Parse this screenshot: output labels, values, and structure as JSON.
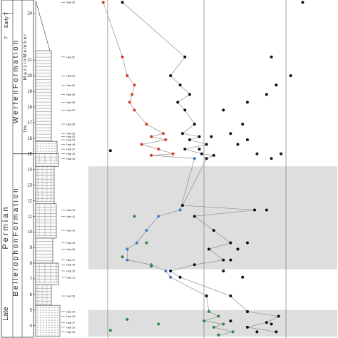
{
  "stratigraphy": {
    "age_labels": [
      "Early T",
      "?",
      "Late",
      "P e r m i a n"
    ],
    "formation_labels": [
      "W e r f e n   F o r m a t i o n",
      "B e l l e r o p h o n   F o r m a t i o n"
    ],
    "member_label": "M a z z i n   M e m b e r",
    "tesero_label": "T.Ho."
  },
  "chart_data": {
    "type": "scatter",
    "title": "",
    "ylabel": "",
    "y_ticks": [
      "4",
      "5",
      "6",
      "7",
      "8",
      "9",
      "10",
      "11",
      "12",
      "13",
      "14",
      "15",
      "16",
      "17",
      "18",
      "19",
      "20",
      "21",
      "24"
    ],
    "ylim": [
      3.3,
      24.8
    ],
    "shaded_intervals": [
      [
        3.3,
        5.0
      ],
      [
        7.6,
        14.2
      ]
    ],
    "samples": [
      {
        "label": "Hasi 63",
        "y": 24.7
      },
      {
        "label": "Hasi 62",
        "y": 21.2
      },
      {
        "label": "Hasi 61",
        "y": 20.0
      },
      {
        "label": "Hasi 60",
        "y": 19.4
      },
      {
        "label": "Hasi 59",
        "y": 18.8
      },
      {
        "label": "Hasi 58",
        "y": 18.3
      },
      {
        "label": "Hasi 57",
        "y": 17.8
      },
      {
        "label": "Hasi 56",
        "y": 16.9
      },
      {
        "label": "Hasi 55",
        "y": 16.3
      },
      {
        "label": "Hasi 53",
        "y": 16.1
      },
      {
        "label": "Hasi 51",
        "y": 15.9
      },
      {
        "label": "Hasi 49",
        "y": 15.6
      },
      {
        "label": "Hasi 47",
        "y": 15.3
      },
      {
        "label": "Hasi 45",
        "y": 15.0
      },
      {
        "label": "Hasi 44",
        "y": 14.7
      },
      {
        "label": "Hasi 43",
        "y": 11.4
      },
      {
        "label": "Hasi 42",
        "y": 11.0
      },
      {
        "label": "Hasi 41",
        "y": 10.1
      },
      {
        "label": "Hasi 39",
        "y": 9.3
      },
      {
        "label": "Hasi 38",
        "y": 8.9
      },
      {
        "label": "Hasi 37",
        "y": 8.2
      },
      {
        "label": "Hasi 34",
        "y": 7.9
      },
      {
        "label": "Hasi 32",
        "y": 7.5
      },
      {
        "label": "Hasi 31",
        "y": 7.1
      },
      {
        "label": "Hasi 30",
        "y": 5.9
      },
      {
        "label": "Hasi 29",
        "y": 4.9
      },
      {
        "label": "Hasi 28",
        "y": 4.6
      },
      {
        "label": "Hasi 27",
        "y": 4.2
      },
      {
        "label": "Hasi 26",
        "y": 3.9
      },
      {
        "label": "Hasi 25",
        "y": 3.6
      }
    ],
    "series": [
      {
        "color": "#d43a2f",
        "connected": true,
        "x_range": [
          0,
          1
        ],
        "points": [
          {
            "x": 0.02,
            "y": 24.7
          },
          {
            "x": 0.1,
            "y": 21.2
          },
          {
            "x": 0.12,
            "y": 20.0
          },
          {
            "x": 0.15,
            "y": 19.4
          },
          {
            "x": 0.14,
            "y": 18.8
          },
          {
            "x": 0.13,
            "y": 18.3
          },
          {
            "x": 0.15,
            "y": 17.8
          },
          {
            "x": 0.2,
            "y": 16.9
          },
          {
            "x": 0.27,
            "y": 16.3
          },
          {
            "x": 0.22,
            "y": 16.1
          },
          {
            "x": 0.28,
            "y": 15.9
          },
          {
            "x": 0.18,
            "y": 15.6
          },
          {
            "x": 0.25,
            "y": 15.3
          },
          {
            "x": 0.31,
            "y": 15.0
          },
          {
            "x": 0.22,
            "y": 14.9
          },
          {
            "x": 0.4,
            "y": 14.7
          }
        ]
      },
      {
        "color": "#3f7fc4",
        "connected": true,
        "x_range": [
          0,
          1
        ],
        "points": [
          {
            "x": 0.4,
            "y": 14.7
          },
          {
            "x": 0.34,
            "y": 11.4
          },
          {
            "x": 0.25,
            "y": 11.0
          },
          {
            "x": 0.2,
            "y": 10.1
          },
          {
            "x": 0.16,
            "y": 9.3
          },
          {
            "x": 0.12,
            "y": 8.9
          },
          {
            "x": 0.12,
            "y": 8.2
          },
          {
            "x": 0.22,
            "y": 7.9
          },
          {
            "x": 0.28,
            "y": 7.5
          },
          {
            "x": 0.3,
            "y": 7.1
          },
          {
            "x": 0.45,
            "y": 5.9
          }
        ]
      },
      {
        "color": "#2d8a3e",
        "connected": true,
        "x_range": [
          0,
          1
        ],
        "points": [
          {
            "x": 0.45,
            "y": 5.9
          },
          {
            "x": 0.46,
            "y": 4.9
          },
          {
            "x": 0.5,
            "y": 4.6
          },
          {
            "x": 0.44,
            "y": 4.3
          },
          {
            "x": 0.52,
            "y": 4.1
          },
          {
            "x": 0.48,
            "y": 3.9
          },
          {
            "x": 0.56,
            "y": 3.6
          },
          {
            "x": 0.5,
            "y": 3.4
          }
        ]
      },
      {
        "color": "#111111",
        "connected": true,
        "x_range": [
          0,
          1
        ],
        "points": [
          {
            "x": 0.1,
            "y": 24.7
          },
          {
            "x": 0.36,
            "y": 21.2
          },
          {
            "x": 0.3,
            "y": 20.0
          },
          {
            "x": 0.34,
            "y": 19.4
          },
          {
            "x": 0.38,
            "y": 18.8
          },
          {
            "x": 0.33,
            "y": 18.3
          },
          {
            "x": 0.36,
            "y": 17.8
          },
          {
            "x": 0.4,
            "y": 16.9
          },
          {
            "x": 0.35,
            "y": 16.3
          },
          {
            "x": 0.42,
            "y": 16.1
          },
          {
            "x": 0.38,
            "y": 15.9
          },
          {
            "x": 0.45,
            "y": 15.6
          },
          {
            "x": 0.36,
            "y": 15.3
          },
          {
            "x": 0.43,
            "y": 15.0
          },
          {
            "x": 0.48,
            "y": 14.9
          },
          {
            "x": 0.45,
            "y": 14.7
          },
          {
            "x": 0.35,
            "y": 11.7
          },
          {
            "x": 0.65,
            "y": 11.4
          },
          {
            "x": 0.4,
            "y": 11.0
          },
          {
            "x": 0.48,
            "y": 10.1
          },
          {
            "x": 0.55,
            "y": 9.3
          },
          {
            "x": 0.46,
            "y": 8.9
          },
          {
            "x": 0.52,
            "y": 8.2
          },
          {
            "x": 0.4,
            "y": 7.9
          },
          {
            "x": 0.3,
            "y": 7.5
          },
          {
            "x": 0.34,
            "y": 7.1
          },
          {
            "x": 0.55,
            "y": 5.9
          },
          {
            "x": 0.62,
            "y": 4.9
          },
          {
            "x": 0.75,
            "y": 4.6
          },
          {
            "x": 0.7,
            "y": 4.2
          },
          {
            "x": 0.62,
            "y": 3.9
          },
          {
            "x": 0.74,
            "y": 3.6
          }
        ]
      },
      {
        "color": "#111111",
        "connected": false,
        "x_range": [
          0,
          1
        ],
        "points": [
          {
            "x": 0.85,
            "y": 24.7
          },
          {
            "x": 0.72,
            "y": 21.2
          },
          {
            "x": 0.8,
            "y": 20.0
          },
          {
            "x": 0.74,
            "y": 19.4
          },
          {
            "x": 0.7,
            "y": 18.8
          },
          {
            "x": 0.62,
            "y": 18.3
          },
          {
            "x": 0.52,
            "y": 17.8
          },
          {
            "x": 0.6,
            "y": 16.9
          },
          {
            "x": 0.55,
            "y": 16.3
          },
          {
            "x": 0.47,
            "y": 16.1
          },
          {
            "x": 0.62,
            "y": 15.9
          },
          {
            "x": 0.58,
            "y": 15.6
          },
          {
            "x": 0.42,
            "y": 15.3
          },
          {
            "x": 0.66,
            "y": 15.0
          },
          {
            "x": 0.72,
            "y": 14.7
          },
          {
            "x": 0.76,
            "y": 15.0
          },
          {
            "x": 0.05,
            "y": 15.2
          },
          {
            "x": 0.7,
            "y": 11.4
          },
          {
            "x": 0.62,
            "y": 9.3
          },
          {
            "x": 0.58,
            "y": 8.9
          },
          {
            "x": 0.55,
            "y": 8.2
          },
          {
            "x": 0.52,
            "y": 7.5
          },
          {
            "x": 0.6,
            "y": 7.1
          },
          {
            "x": 0.45,
            "y": 5.9
          },
          {
            "x": 0.62,
            "y": 4.9
          },
          {
            "x": 0.55,
            "y": 4.3
          },
          {
            "x": 0.72,
            "y": 4.1
          },
          {
            "x": 0.66,
            "y": 3.6
          }
        ]
      },
      {
        "color": "#2d8a3e",
        "connected": false,
        "x_range": [
          0,
          1
        ],
        "points": [
          {
            "x": 0.15,
            "y": 11.0
          },
          {
            "x": 0.2,
            "y": 9.3
          },
          {
            "x": 0.1,
            "y": 8.4
          },
          {
            "x": 0.22,
            "y": 7.8
          },
          {
            "x": 0.12,
            "y": 4.4
          },
          {
            "x": 0.25,
            "y": 4.1
          },
          {
            "x": 0.05,
            "y": 3.7
          }
        ]
      }
    ]
  }
}
